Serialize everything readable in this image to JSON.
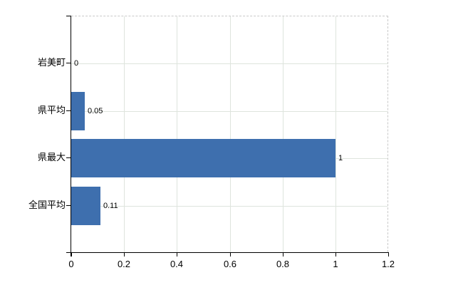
{
  "chart_data": {
    "type": "bar",
    "orientation": "horizontal",
    "title": "",
    "xlabel": "",
    "ylabel": "",
    "categories": [
      "岩美町",
      "県平均",
      "県最大",
      "全国平均"
    ],
    "values": [
      0,
      0.05,
      1,
      0.11
    ],
    "value_labels": [
      "0",
      "0.05",
      "1",
      "0.11"
    ],
    "xlim": [
      0,
      1.2
    ],
    "x_ticks": [
      0,
      0.2,
      0.4,
      0.6,
      0.8,
      1,
      1.2
    ],
    "x_tick_labels": [
      "0",
      "0.2",
      "0.4",
      "0.6",
      "0.8",
      "1",
      "1.2"
    ],
    "grid": true,
    "legend": false,
    "colors": {
      "bar": "#3e6fae",
      "gridline": "#dee4dd",
      "dashed_border": "#c9c9c9",
      "axis": "#000000",
      "text": "#000000",
      "background": "#ffffff"
    }
  }
}
